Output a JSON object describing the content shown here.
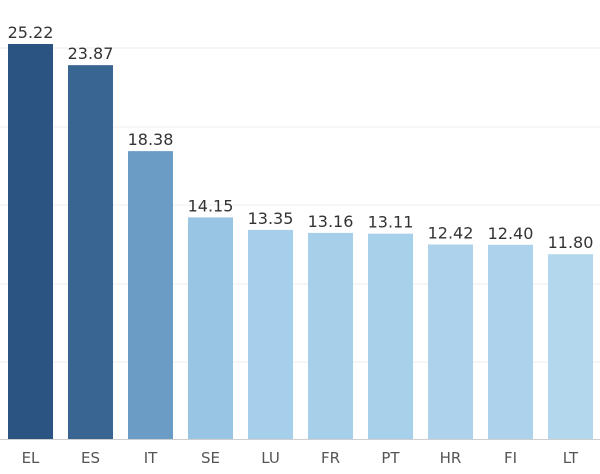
{
  "chart_data": {
    "type": "bar",
    "categories": [
      "EL",
      "ES",
      "IT",
      "SE",
      "LU",
      "FR",
      "PT",
      "HR",
      "FI",
      "LT"
    ],
    "values": [
      25.22,
      23.87,
      18.38,
      14.15,
      13.35,
      13.16,
      13.11,
      12.42,
      12.4,
      11.8
    ],
    "value_labels": [
      "25.22",
      "23.87",
      "18.38",
      "14.15",
      "13.35",
      "13.16",
      "13.11",
      "12.42",
      "12.40",
      "11.80"
    ],
    "ylim": [
      0,
      25.22
    ],
    "grid": true,
    "colors": [
      "#2c5482",
      "#396593",
      "#6b9cc6",
      "#99c5e4",
      "#a5cfea",
      "#a6cfea",
      "#a7d0ea",
      "#acd3eb",
      "#acd3eb",
      "#b3d8ee"
    ]
  }
}
